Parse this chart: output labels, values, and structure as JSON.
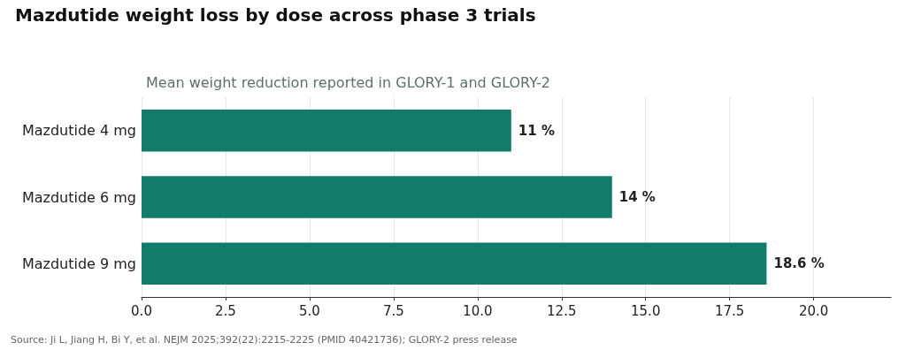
{
  "chart_data": {
    "type": "bar",
    "orientation": "horizontal",
    "title": "Mazdutide weight loss by dose across phase 3 trials",
    "subtitle": "Mean weight reduction reported in GLORY-1 and GLORY-2",
    "categories": [
      "Mazdutide 4 mg",
      "Mazdutide 6 mg",
      "Mazdutide 9 mg"
    ],
    "values": [
      11,
      14,
      18.6
    ],
    "value_labels": [
      "11 %",
      "14 %",
      "18.6 %"
    ],
    "color": "#117c69",
    "xlim": [
      0,
      22.3
    ],
    "xticks": [
      {
        "value": 0,
        "label": "0.0"
      },
      {
        "value": 2.5,
        "label": "2.5"
      },
      {
        "value": 5,
        "label": "5.0"
      },
      {
        "value": 7.5,
        "label": "7.5"
      },
      {
        "value": 10,
        "label": "10.0"
      },
      {
        "value": 12.5,
        "label": "12.5"
      },
      {
        "value": 15,
        "label": "15.0"
      },
      {
        "value": 17.5,
        "label": "17.5"
      },
      {
        "value": 20,
        "label": "20.0"
      }
    ],
    "grid": "x",
    "annotations": [
      "Source: Ji L, Jiang H, Bi Y, et al. NEJM 2025;392(22):2215-2225 (PMID 40421736); GLORY-2 press release"
    ]
  }
}
